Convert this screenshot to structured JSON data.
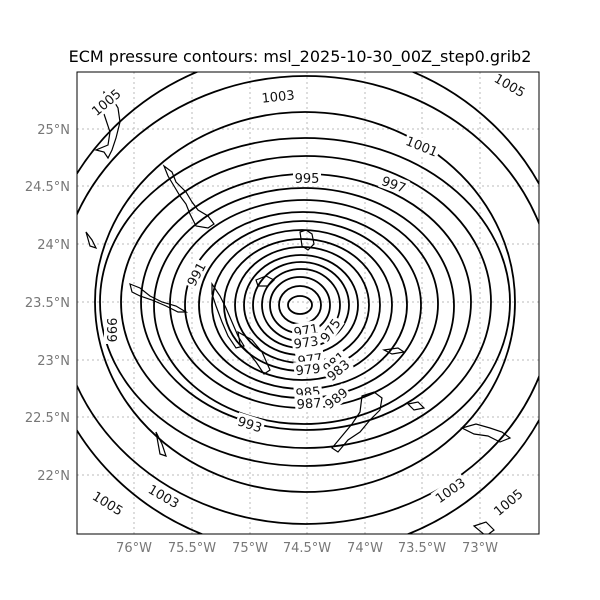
{
  "title": "ECM pressure contours: msl_2025-10-30_00Z_step0.grib2",
  "map": {
    "lon_range": [
      -76.5,
      -72.5
    ],
    "lat_range": [
      21.5,
      25.5
    ],
    "grid": "dotted",
    "lat_ticks": [
      "25°N",
      "24.5°N",
      "24°N",
      "23.5°N",
      "23°N",
      "22.5°N",
      "22°N"
    ],
    "lon_ticks": [
      "76°W",
      "75.5°W",
      "75°W",
      "74.5°W",
      "74°W",
      "73.5°W",
      "73°W"
    ],
    "contour_interval_hPa": 2,
    "contour_color": "#000000",
    "contour_labels": [
      "1005",
      "1003",
      "1001",
      "997",
      "995",
      "991",
      "999",
      "971",
      "975",
      "973",
      "977",
      "979",
      "981",
      "983",
      "985",
      "987",
      "989",
      "993",
      "1003",
      "1005",
      "1003",
      "1005",
      "1005"
    ]
  }
}
